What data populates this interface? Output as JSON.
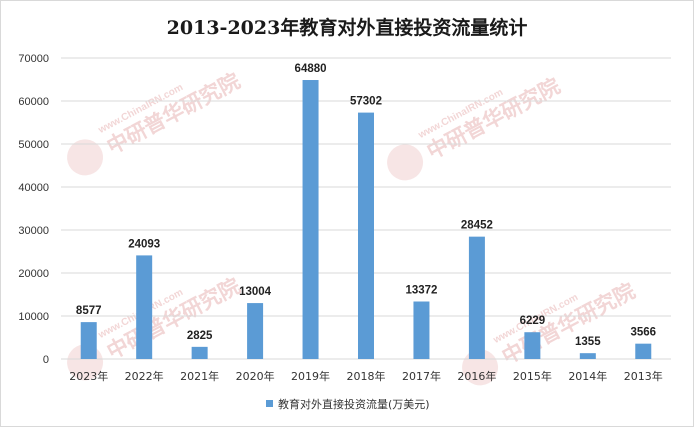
{
  "chart_data": {
    "type": "bar",
    "title": "2013-2023年教育对外直接投资流量统计",
    "categories": [
      "2023年",
      "2022年",
      "2021年",
      "2020年",
      "2019年",
      "2018年",
      "2017年",
      "2016年",
      "2015年",
      "2014年",
      "2013年"
    ],
    "series": [
      {
        "name": "教育对外直接投资流量(万美元)",
        "values": [
          8577,
          24093,
          2825,
          13004,
          64880,
          57302,
          13372,
          28452,
          6229,
          1355,
          3566
        ]
      }
    ],
    "xlabel": "",
    "ylabel": "",
    "ylim": [
      0,
      70000
    ],
    "yticks": [
      0,
      10000,
      20000,
      30000,
      40000,
      50000,
      60000,
      70000
    ],
    "grid": true,
    "legend_position": "bottom",
    "data_labels": true,
    "bar_color": "#5b9bd5",
    "grid_color": "#d9d9d9"
  },
  "watermark": {
    "text": "www.ChinaIRN.com",
    "brand": "中研普华研究院",
    "logo": "CIRN",
    "color": "#e8b5b5"
  }
}
